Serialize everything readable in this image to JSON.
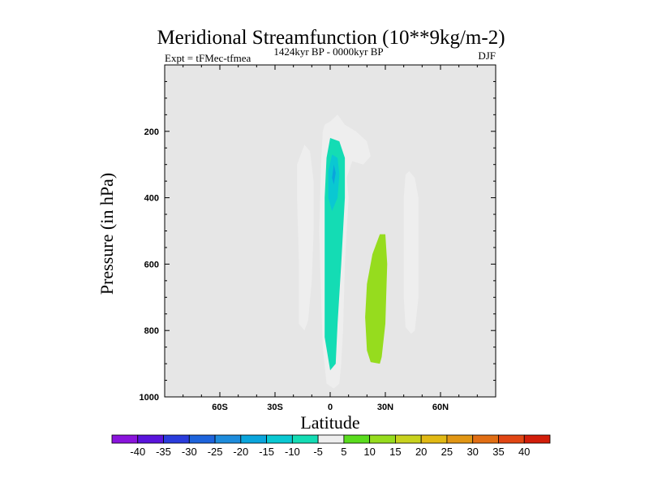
{
  "chart_data": {
    "type": "contour",
    "title": "Meridional Streamfunction (10**9kg/m-2)",
    "subtitle_left": "Expt = tFMec-tfmea",
    "subtitle_center": "1424kyr BP - 0000kyr BP",
    "subtitle_right": "DJF",
    "xlabel": "Latitude",
    "ylabel": "Pressure (in hPa)",
    "xlim": [
      -90,
      90
    ],
    "ylim": [
      1000,
      0
    ],
    "x_ticks": [
      {
        "value": -60,
        "label": "60S"
      },
      {
        "value": -30,
        "label": "30S"
      },
      {
        "value": 0,
        "label": "0"
      },
      {
        "value": 30,
        "label": "30N"
      },
      {
        "value": 60,
        "label": "60N"
      }
    ],
    "y_ticks": [
      {
        "value": 200,
        "label": "200"
      },
      {
        "value": 400,
        "label": "400"
      },
      {
        "value": 600,
        "label": "600"
      },
      {
        "value": 800,
        "label": "800"
      },
      {
        "value": 1000,
        "label": "1000"
      }
    ],
    "background_color": "#e6e6e6",
    "colorbar": {
      "labels": [
        "-40",
        "-35",
        "-30",
        "-25",
        "-20",
        "-15",
        "-10",
        "-5",
        "5",
        "10",
        "15",
        "20",
        "25",
        "30",
        "35",
        "40"
      ],
      "colors": [
        "#8a14dc",
        "#5a14dc",
        "#2a3cdc",
        "#1e64dc",
        "#1e8cdc",
        "#0aa5dc",
        "#0ac8d2",
        "#14dcb4",
        "#eeeeee",
        "#5adc1e",
        "#96dc1e",
        "#c8d21e",
        "#e1b914",
        "#e19614",
        "#e16e14",
        "#e14614",
        "#d21e0a"
      ]
    },
    "regions": [
      {
        "name": "left-cell",
        "level": -5,
        "points": [
          [
            -16,
            270
          ],
          [
            -14,
            240
          ],
          [
            -11,
            260
          ],
          [
            -9,
            350
          ],
          [
            -9,
            500
          ],
          [
            -10,
            650
          ],
          [
            -12,
            770
          ],
          [
            -14,
            800
          ],
          [
            -17,
            780
          ],
          [
            -17,
            600
          ],
          [
            -18,
            400
          ],
          [
            -18,
            300
          ]
        ]
      },
      {
        "name": "central-cell",
        "level": -5,
        "points": [
          [
            -3,
            180
          ],
          [
            0,
            170
          ],
          [
            4,
            150
          ],
          [
            8,
            180
          ],
          [
            14,
            200
          ],
          [
            20,
            230
          ],
          [
            22,
            275
          ],
          [
            18,
            300
          ],
          [
            12,
            290
          ],
          [
            9,
            340
          ],
          [
            10,
            400
          ],
          [
            8,
            600
          ],
          [
            7,
            800
          ],
          [
            6,
            900
          ],
          [
            5,
            960
          ],
          [
            2,
            975
          ],
          [
            -2,
            960
          ],
          [
            -4,
            850
          ],
          [
            -5,
            700
          ],
          [
            -6,
            500
          ],
          [
            -5,
            300
          ],
          [
            -4,
            200
          ]
        ]
      },
      {
        "name": "central-core-1",
        "level": -10,
        "points": [
          [
            0,
            220
          ],
          [
            5,
            230
          ],
          [
            8,
            280
          ],
          [
            8,
            400
          ],
          [
            6,
            600
          ],
          [
            4,
            780
          ],
          [
            3,
            900
          ],
          [
            0,
            920
          ],
          [
            -3,
            820
          ],
          [
            -3,
            600
          ],
          [
            -3,
            400
          ],
          [
            -2,
            280
          ]
        ]
      },
      {
        "name": "central-core-2",
        "level": -15,
        "points": [
          [
            1,
            270
          ],
          [
            4,
            280
          ],
          [
            5,
            330
          ],
          [
            4,
            400
          ],
          [
            1,
            440
          ],
          [
            -1,
            400
          ],
          [
            -1,
            320
          ]
        ]
      },
      {
        "name": "central-core-3",
        "level": -20,
        "points": [
          [
            2,
            300
          ],
          [
            3,
            325
          ],
          [
            2,
            360
          ],
          [
            1,
            340
          ]
        ]
      },
      {
        "name": "right-cell",
        "level": -5,
        "points": [
          [
            41,
            330
          ],
          [
            43,
            320
          ],
          [
            46,
            340
          ],
          [
            48,
            400
          ],
          [
            48,
            550
          ],
          [
            48,
            700
          ],
          [
            46,
            800
          ],
          [
            44,
            810
          ],
          [
            41,
            790
          ],
          [
            40,
            700
          ],
          [
            40,
            550
          ],
          [
            40,
            400
          ]
        ]
      },
      {
        "name": "positive-cell",
        "level": 10,
        "points": [
          [
            27,
            510
          ],
          [
            30,
            510
          ],
          [
            31,
            600
          ],
          [
            30,
            780
          ],
          [
            28,
            880
          ],
          [
            27,
            900
          ],
          [
            22,
            895
          ],
          [
            20,
            860
          ],
          [
            19,
            760
          ],
          [
            20,
            660
          ],
          [
            23,
            570
          ]
        ]
      }
    ]
  }
}
